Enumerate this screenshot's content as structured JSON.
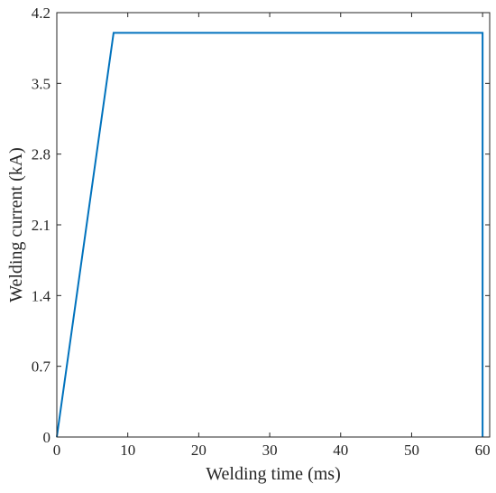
{
  "chart_data": {
    "type": "line",
    "xlabel": "Welding time (ms)",
    "ylabel": "Welding current (kA)",
    "xlim": [
      0,
      61
    ],
    "ylim": [
      0,
      4.2
    ],
    "xticks": [
      0,
      10,
      20,
      30,
      40,
      50,
      60
    ],
    "yticks": [
      0,
      0.7,
      1.4,
      2.1,
      2.8,
      3.5,
      4.2
    ],
    "xtick_labels": [
      "0",
      "10",
      "20",
      "30",
      "40",
      "50",
      "60"
    ],
    "ytick_labels": [
      "0",
      "0.7",
      "1.4",
      "2.1",
      "2.8",
      "3.5",
      "4.2"
    ],
    "grid": false,
    "series": [
      {
        "color": "#0072BD",
        "x": [
          0,
          8,
          60,
          60
        ],
        "y": [
          0,
          4.0,
          4.0,
          0
        ]
      }
    ]
  }
}
